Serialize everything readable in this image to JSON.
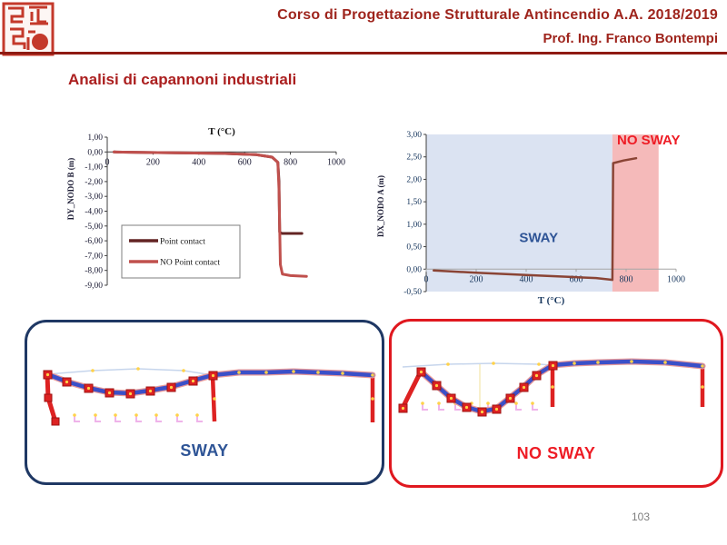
{
  "header": {
    "course_title": "Corso di Progettazione Strutturale Antincendio A.A. 2018/2019",
    "professor": "Prof. Ing. Franco Bontempi",
    "accent_color": "#9e241c"
  },
  "slide": {
    "title": "Analisi di capannoni industriali",
    "page_number": "103"
  },
  "chart_data": [
    {
      "id": "dy_nodo_b",
      "type": "line",
      "title": "T (°C)",
      "title_position": "top",
      "xlabel": "",
      "ylabel": "DY_NODO B (m)",
      "xlim": [
        0,
        1000
      ],
      "ylim": [
        -9,
        1
      ],
      "xticks": [
        0,
        200,
        400,
        600,
        800,
        1000
      ],
      "yticks": [
        1,
        0,
        -1,
        -2,
        -3,
        -4,
        -5,
        -6,
        -7,
        -8,
        -9
      ],
      "ytick_labels": [
        "1,00",
        "0,00",
        "-1,00",
        "-2,00",
        "-3,00",
        "-4,00",
        "-5,00",
        "-6,00",
        "-7,00",
        "-8,00",
        "-9,00"
      ],
      "axis_color": "#404040",
      "tick_color": "#1a1a33",
      "grid": false,
      "legend_position": "lower-left",
      "series": [
        {
          "name": "Point contact",
          "color": "#632423",
          "width": 3,
          "points": [
            [
              30,
              0
            ],
            [
              100,
              -0.02
            ],
            [
              300,
              -0.06
            ],
            [
              500,
              -0.1
            ],
            [
              650,
              -0.18
            ],
            [
              720,
              -0.35
            ],
            [
              745,
              -0.7
            ],
            [
              750,
              -2.0
            ],
            [
              753,
              -5.4
            ],
            [
              762,
              -5.5
            ],
            [
              850,
              -5.5
            ]
          ]
        },
        {
          "name": "NO Point contact",
          "color": "#c0504d",
          "width": 3,
          "points": [
            [
              30,
              0
            ],
            [
              100,
              -0.02
            ],
            [
              300,
              -0.06
            ],
            [
              500,
              -0.1
            ],
            [
              650,
              -0.18
            ],
            [
              720,
              -0.35
            ],
            [
              745,
              -0.7
            ],
            [
              750,
              -2.5
            ],
            [
              756,
              -7.6
            ],
            [
              765,
              -8.25
            ],
            [
              800,
              -8.35
            ],
            [
              870,
              -8.4
            ]
          ]
        }
      ],
      "legend": {
        "entries": [
          "Point contact",
          "NO Point contact"
        ]
      }
    },
    {
      "id": "dx_nodo_a",
      "type": "line",
      "title": "",
      "xlabel": "T (°C)",
      "ylabel": "DX_NODO A (m)",
      "xlim": [
        0,
        1000
      ],
      "ylim": [
        -0.5,
        3
      ],
      "xticks": [
        0,
        200,
        400,
        600,
        800,
        1000
      ],
      "yticks": [
        3,
        2.5,
        2,
        1.5,
        1,
        0.5,
        0,
        -0.5
      ],
      "ytick_labels": [
        "3,00",
        "2,50",
        "2,00",
        "1,50",
        "1,00",
        "0,50",
        "0,00",
        "-0,50"
      ],
      "axis_color": "#a6a6a6",
      "tick_color": "#17365d",
      "grid": false,
      "regions": [
        {
          "label": "SWAY",
          "from": 0,
          "to": 745,
          "fill": "#dbe3f2",
          "label_color": "#2e5496",
          "label_at": [
            450,
            0.6
          ]
        },
        {
          "label": "NO SWAY",
          "from": 745,
          "to": 930,
          "fill": "#f5baba",
          "label_color": "#ee1c25",
          "label_at": [
            890,
            2.78
          ]
        }
      ],
      "series": [
        {
          "name": "DX_NODO A",
          "color": "#8a4435",
          "width": 2.5,
          "points": [
            [
              30,
              -0.03
            ],
            [
              200,
              -0.08
            ],
            [
              400,
              -0.13
            ],
            [
              600,
              -0.18
            ],
            [
              680,
              -0.2
            ],
            [
              730,
              -0.23
            ],
            [
              745,
              -0.24
            ],
            [
              748,
              2.36
            ],
            [
              790,
              2.42
            ],
            [
              840,
              2.47
            ]
          ]
        }
      ]
    }
  ],
  "diagrams": {
    "sway": {
      "label": "SWAY",
      "label_color": "#2e5496",
      "border_color": "#1f3864"
    },
    "no_sway": {
      "label": "NO SWAY",
      "label_color": "#ee1c25",
      "border_color": "#e0181f"
    }
  }
}
